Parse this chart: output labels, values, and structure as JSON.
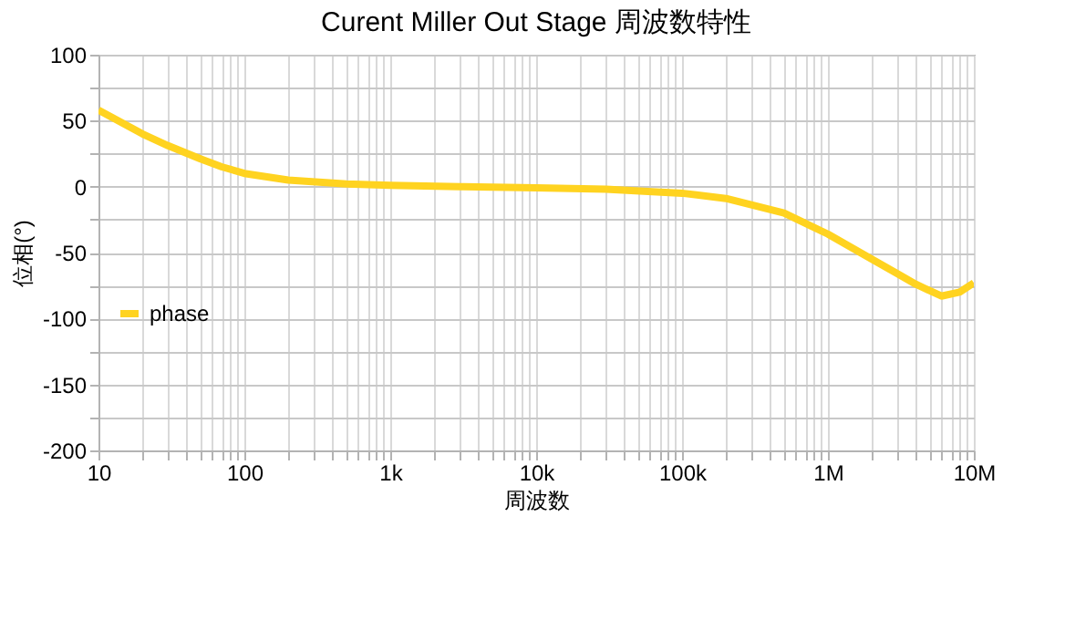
{
  "chart_data": {
    "type": "line",
    "title": "Curent Miller Out Stage  周波数特性",
    "xlabel": "周波数",
    "ylabel": "位相(°)",
    "log": "x",
    "grid": true,
    "legend": "left",
    "line_style": "solid",
    "marker": "none",
    "xlim": [
      10,
      10000000
    ],
    "ylim": [
      -200,
      100
    ],
    "xticks": [
      {
        "value": 10,
        "label": "10"
      },
      {
        "value": 20,
        "label": null
      },
      {
        "value": 30,
        "label": null
      },
      {
        "value": 40,
        "label": null
      },
      {
        "value": 50,
        "label": null
      },
      {
        "value": 60,
        "label": null
      },
      {
        "value": 70,
        "label": null
      },
      {
        "value": 80,
        "label": null
      },
      {
        "value": 90,
        "label": null
      },
      {
        "value": 100,
        "label": "100"
      },
      {
        "value": 200,
        "label": null
      },
      {
        "value": 300,
        "label": null
      },
      {
        "value": 400,
        "label": null
      },
      {
        "value": 500,
        "label": null
      },
      {
        "value": 600,
        "label": null
      },
      {
        "value": 700,
        "label": null
      },
      {
        "value": 800,
        "label": null
      },
      {
        "value": 900,
        "label": null
      },
      {
        "value": 1000,
        "label": "1k"
      },
      {
        "value": 2000,
        "label": null
      },
      {
        "value": 3000,
        "label": null
      },
      {
        "value": 4000,
        "label": null
      },
      {
        "value": 5000,
        "label": null
      },
      {
        "value": 6000,
        "label": null
      },
      {
        "value": 7000,
        "label": null
      },
      {
        "value": 8000,
        "label": null
      },
      {
        "value": 9000,
        "label": null
      },
      {
        "value": 10000,
        "label": "10k"
      },
      {
        "value": 20000,
        "label": null
      },
      {
        "value": 30000,
        "label": null
      },
      {
        "value": 40000,
        "label": null
      },
      {
        "value": 50000,
        "label": null
      },
      {
        "value": 60000,
        "label": null
      },
      {
        "value": 70000,
        "label": null
      },
      {
        "value": 80000,
        "label": null
      },
      {
        "value": 90000,
        "label": null
      },
      {
        "value": 100000,
        "label": "100k"
      },
      {
        "value": 200000,
        "label": null
      },
      {
        "value": 300000,
        "label": null
      },
      {
        "value": 400000,
        "label": null
      },
      {
        "value": 500000,
        "label": null
      },
      {
        "value": 600000,
        "label": null
      },
      {
        "value": 700000,
        "label": null
      },
      {
        "value": 800000,
        "label": null
      },
      {
        "value": 900000,
        "label": null
      },
      {
        "value": 1000000,
        "label": "1M"
      },
      {
        "value": 2000000,
        "label": null
      },
      {
        "value": 3000000,
        "label": null
      },
      {
        "value": 4000000,
        "label": null
      },
      {
        "value": 5000000,
        "label": null
      },
      {
        "value": 6000000,
        "label": null
      },
      {
        "value": 7000000,
        "label": null
      },
      {
        "value": 8000000,
        "label": null
      },
      {
        "value": 9000000,
        "label": null
      },
      {
        "value": 10000000,
        "label": "10M"
      }
    ],
    "yticks": [
      -200,
      {
        "value": -175,
        "label": null
      },
      -150,
      {
        "value": -125,
        "label": null
      },
      -100,
      {
        "value": -75,
        "label": null
      },
      -50,
      {
        "value": -25,
        "label": null
      },
      0,
      {
        "value": 25,
        "label": null
      },
      50,
      {
        "value": 75,
        "label": null
      },
      100
    ],
    "series": [
      {
        "name": "phase",
        "color": "#ffd320",
        "x": [
          10,
          20,
          30,
          50,
          70,
          100,
          200,
          500,
          1000,
          3000,
          10000,
          30000,
          100000,
          200000,
          500000,
          1000000,
          2000000,
          3000000,
          4000000,
          6000000,
          8000000,
          10000000
        ],
        "values": [
          58,
          40,
          31,
          21,
          15,
          10,
          5,
          2,
          1,
          0,
          -1,
          -2,
          -5,
          -9,
          -20,
          -36,
          -55,
          -66,
          -74,
          -83,
          -80,
          -73
        ]
      }
    ]
  }
}
